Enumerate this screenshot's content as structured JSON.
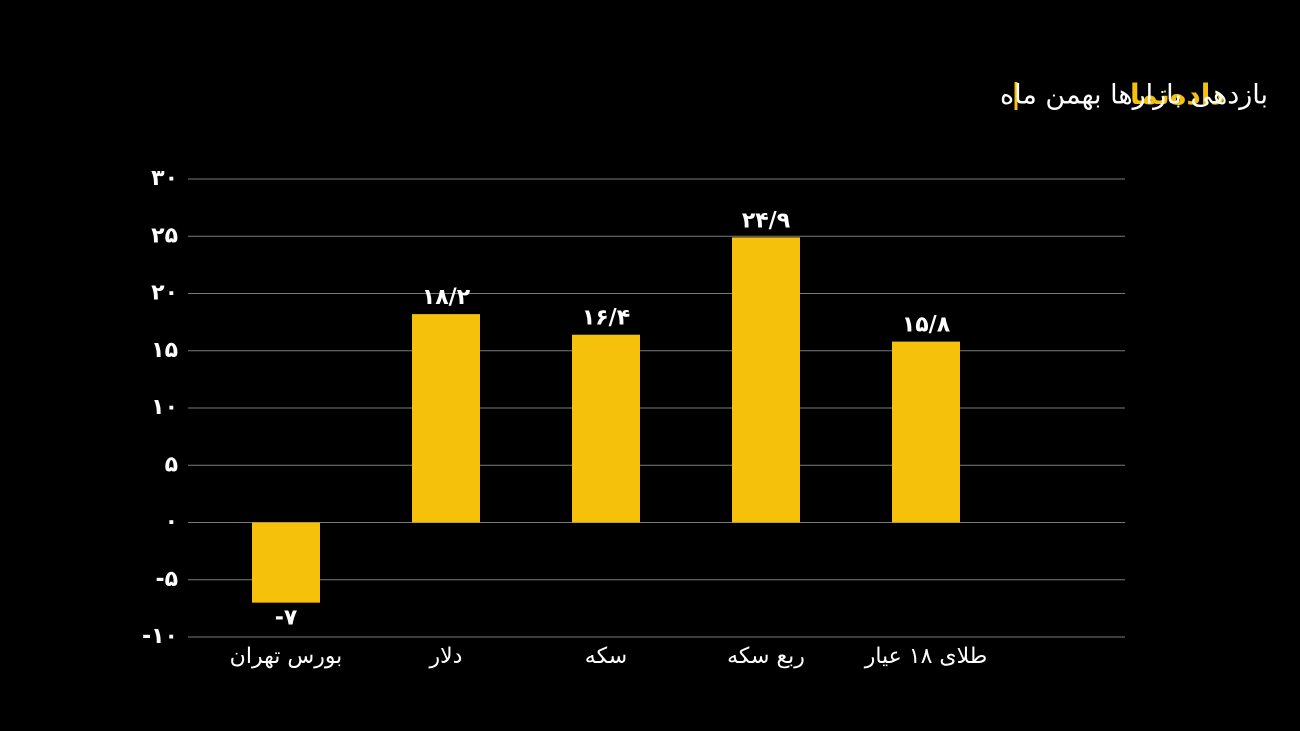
{
  "chart_data": {
    "type": "bar",
    "brand": "داده‌نما",
    "title": "بازدهی بازارها بهمن ماه",
    "categories": [
      "بورس تهران",
      "دلار",
      "سکه",
      "ربع سکه",
      "طلای ۱۸ عیار"
    ],
    "values": [
      -7,
      18.2,
      16.4,
      24.9,
      15.8
    ],
    "value_labels": [
      "-۷",
      "۱۸/۲",
      "۱۶/۴",
      "۲۴/۹",
      "۱۵/۸"
    ],
    "color": "#f5c10a",
    "ylim": [
      -10,
      30
    ],
    "yticks": [
      {
        "value": -10,
        "label": "-۱۰"
      },
      {
        "value": -5,
        "label": "-۵"
      },
      {
        "value": 0,
        "label": "۰"
      },
      {
        "value": 5,
        "label": "۵"
      },
      {
        "value": 10,
        "label": "۱۰"
      },
      {
        "value": 15,
        "label": "۱۵"
      },
      {
        "value": 20,
        "label": "۲۰"
      },
      {
        "value": 25,
        "label": "۲۵"
      },
      {
        "value": 30,
        "label": "۳۰"
      }
    ],
    "grid": true
  }
}
